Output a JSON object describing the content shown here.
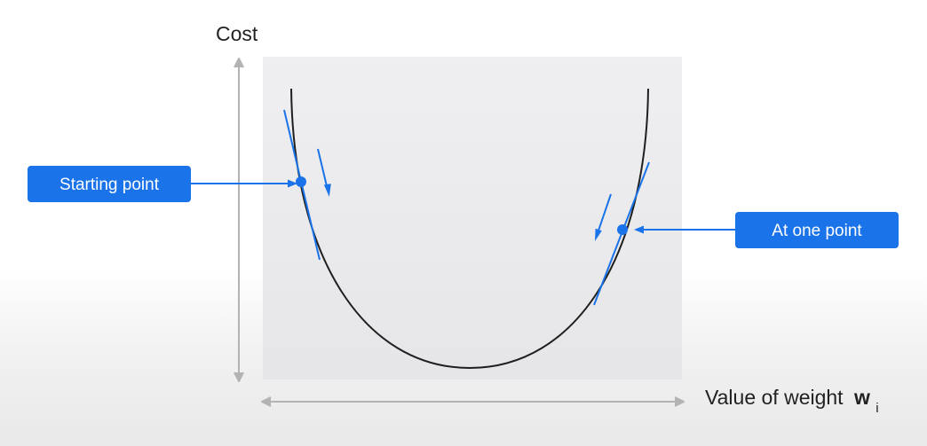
{
  "diagram": {
    "y_axis_label": "Cost",
    "x_axis_label": "Value of weight",
    "x_axis_symbol": "w",
    "x_axis_subscript": "i",
    "callouts": {
      "starting_point": "Starting point",
      "at_one_point": "At one point"
    }
  },
  "colors": {
    "accent": "#1a73e8",
    "curve": "#1f1f1f",
    "axis": "#b3b3b3",
    "panel": "#eeeef0"
  }
}
